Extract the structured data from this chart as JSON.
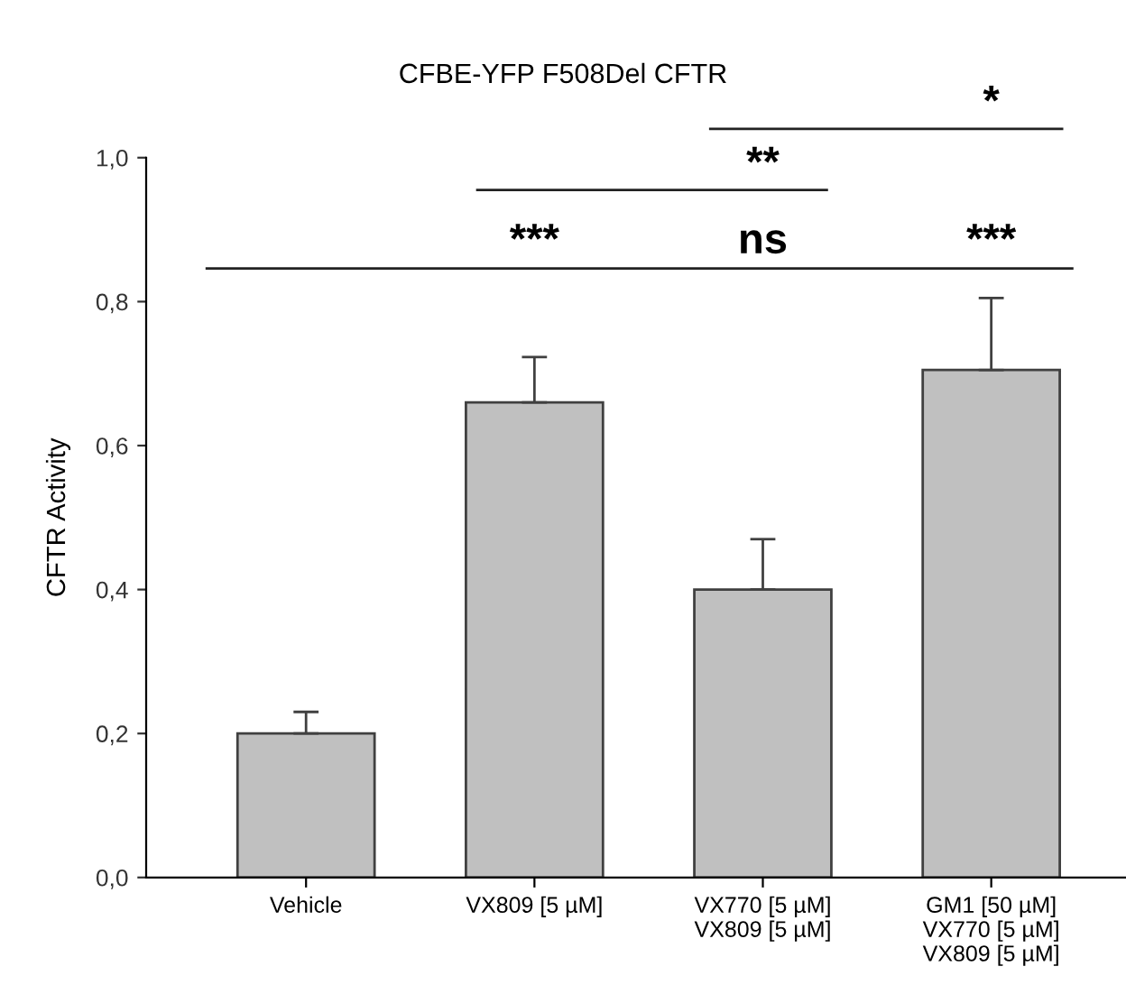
{
  "chart_data": {
    "type": "bar",
    "title": "CFBE-YFP F508Del CFTR",
    "ylabel": "CFTR Activity",
    "categories": [
      "Vehicle",
      "VX809 [5 µM]",
      "VX770 [5 µM]\nVX809 [5 µM]",
      "GM1 [50 µM]\nVX770 [5 µM]\nVX809 [5 µM]"
    ],
    "values": [
      0.2,
      0.66,
      0.4,
      0.705
    ],
    "errors": [
      [
        0.2,
        0.23
      ],
      [
        0.66,
        0.723
      ],
      [
        0.4,
        0.47
      ],
      [
        0.705,
        0.805
      ]
    ],
    "color": "#c0c0c0",
    "ylim": [
      0,
      1.0
    ],
    "yticks": [
      {
        "value": 0,
        "label": "0,0"
      },
      {
        "value": 0.2,
        "label": "0,2"
      },
      {
        "value": 0.4,
        "label": "0,4"
      },
      {
        "value": 0.6,
        "label": "0,6"
      },
      {
        "value": 0.8,
        "label": "0,8"
      },
      {
        "value": 1.0,
        "label": "1,0"
      }
    ],
    "annotations": [
      "***",
      "ns",
      "***",
      "**",
      "*"
    ],
    "ref_lines": [
      {
        "axis": "y",
        "value": 0.846,
        "color": "#222222"
      }
    ],
    "grid": false,
    "legend": false
  }
}
